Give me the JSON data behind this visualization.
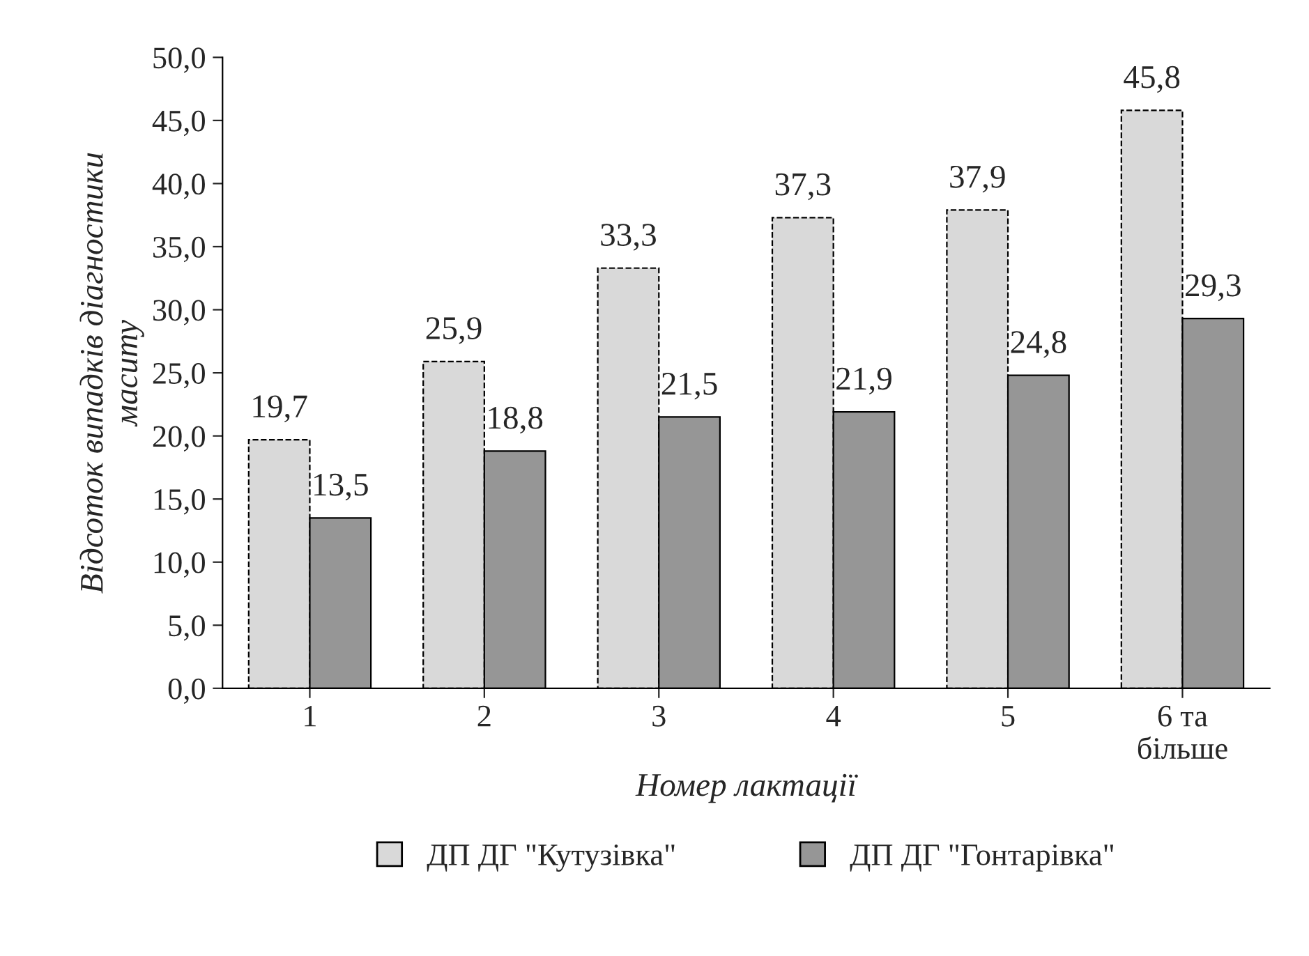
{
  "chart_data": {
    "type": "bar",
    "xlabel": "Номер лактації",
    "ylabel": "Відсоток випадків діагностики\nмаситу",
    "categories": [
      "1",
      "2",
      "3",
      "4",
      "5",
      "6 та\nбільше"
    ],
    "series": [
      {
        "name": "ДП ДГ \"Кутузівка\"",
        "color": "#d9d9d9",
        "values": [
          19.7,
          25.9,
          33.3,
          37.3,
          37.9,
          45.8
        ],
        "value_labels": [
          "19,7",
          "25,9",
          "33,3",
          "37,3",
          "37,9",
          "45,8"
        ]
      },
      {
        "name": "ДП ДГ \"Гонтарівка\"",
        "color": "#969696",
        "values": [
          13.5,
          18.8,
          21.5,
          21.9,
          24.8,
          29.3
        ],
        "value_labels": [
          "13,5",
          "18,8",
          "21,5",
          "21,9",
          "24,8",
          "29,3"
        ]
      }
    ],
    "ylim": [
      0,
      50
    ],
    "yticks": [
      {
        "value": 0,
        "label": "0,0"
      },
      {
        "value": 5,
        "label": "5,0"
      },
      {
        "value": 10,
        "label": "10,0"
      },
      {
        "value": 15,
        "label": "15,0"
      },
      {
        "value": 20,
        "label": "20,0"
      },
      {
        "value": 25,
        "label": "25,0"
      },
      {
        "value": 30,
        "label": "30,0"
      },
      {
        "value": 35,
        "label": "35,0"
      },
      {
        "value": 40,
        "label": "40,0"
      },
      {
        "value": 45,
        "label": "45,0"
      },
      {
        "value": 50,
        "label": "50,0"
      }
    ],
    "grid": false,
    "legend": "bottom"
  }
}
